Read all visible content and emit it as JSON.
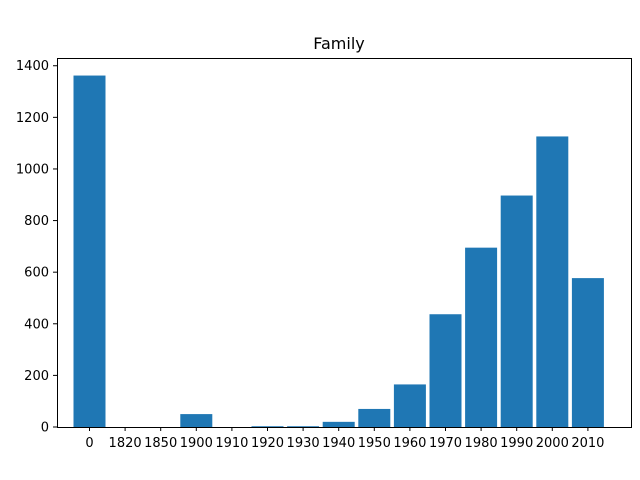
{
  "chart_data": {
    "type": "bar",
    "title": "Family",
    "xlabel": "",
    "ylabel": "",
    "categories": [
      "0",
      "1820",
      "1850",
      "1900",
      "1910",
      "1920",
      "1930",
      "1940",
      "1950",
      "1960",
      "1970",
      "1980",
      "1990",
      "2000",
      "2010"
    ],
    "values": [
      1362,
      0,
      0,
      50,
      0,
      3,
      3,
      20,
      70,
      165,
      437,
      695,
      897,
      1126,
      577
    ],
    "ylim": [
      0,
      1430
    ],
    "yticks": [
      0,
      200,
      400,
      600,
      800,
      1000,
      1200,
      1400
    ],
    "grid": false,
    "legend": "none",
    "bar_color": "#1f77b4"
  }
}
